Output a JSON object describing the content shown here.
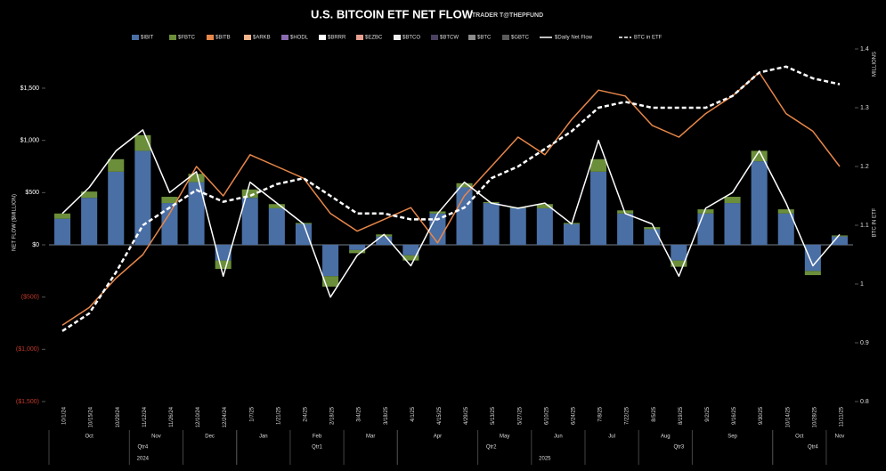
{
  "chart_data": {
    "type": "combo",
    "title": "U.S. BITCOIN ETF NET FLOW",
    "subtitle": "TRADER T@THEPFUND",
    "y_label": "NET FLOW ($MILLION)",
    "y2_label": "BTC IN ETF",
    "y2_unit": "MILLIONS",
    "categories": [
      "10/1/24",
      "10/15/24",
      "10/29/24",
      "11/12/24",
      "11/26/24",
      "12/10/24",
      "12/24/24",
      "1/7/25",
      "1/21/25",
      "2/4/25",
      "2/18/25",
      "3/4/25",
      "3/18/25",
      "4/1/25",
      "4/15/25",
      "4/29/25",
      "5/13/25",
      "5/27/25",
      "6/10/25",
      "6/24/25",
      "7/8/25",
      "7/22/25",
      "8/5/25",
      "8/19/25",
      "9/2/25",
      "9/16/25",
      "9/30/25",
      "10/14/25",
      "10/28/25",
      "11/11/25"
    ],
    "months": [
      "Oct",
      "Nov",
      "Dec",
      "Jan",
      "Feb",
      "Mar",
      "Apr",
      "May",
      "Jun",
      "Jul",
      "Aug",
      "Sep",
      "Oct",
      "Nov"
    ],
    "quarters": [
      "Qtr4",
      "Qtr1",
      "Qtr2",
      "Qtr3",
      "Qtr4"
    ],
    "years": [
      "2024",
      "2025"
    ],
    "ylim": [
      -1500,
      1875
    ],
    "yticks": [
      {
        "value": -1500,
        "label": "($1,500)"
      },
      {
        "value": -1000,
        "label": "($1,000)"
      },
      {
        "value": -500,
        "label": "($500)"
      },
      {
        "value": 0,
        "label": "$0"
      },
      {
        "value": 500,
        "label": "$500"
      },
      {
        "value": 1000,
        "label": "$1,000"
      },
      {
        "value": 1500,
        "label": "$1,500"
      }
    ],
    "y2lim": [
      0.8,
      1.4
    ],
    "y2ticks": [
      0.8,
      0.9,
      1.0,
      1.1,
      1.2,
      1.3,
      1.4
    ],
    "series": [
      {
        "name": "$IBIT",
        "color": "#4a6fa5",
        "kind": "bar",
        "values": [
          250,
          450,
          700,
          900,
          400,
          600,
          -150,
          450,
          350,
          200,
          -300,
          -50,
          80,
          -100,
          300,
          550,
          400,
          350,
          350,
          200,
          700,
          300,
          150,
          -150,
          300,
          400,
          800,
          300,
          -250,
          80
        ]
      },
      {
        "name": "$FBTC",
        "color": "#6b8e3a",
        "kind": "bar",
        "values": [
          50,
          60,
          120,
          150,
          60,
          80,
          -80,
          80,
          40,
          10,
          -100,
          -30,
          20,
          -50,
          20,
          40,
          10,
          10,
          40,
          10,
          120,
          30,
          20,
          -60,
          40,
          60,
          100,
          40,
          -40,
          10
        ]
      },
      {
        "name": "$BITB",
        "color": "#e8874a",
        "kind": "line",
        "axis": "y2",
        "values": [
          0.93,
          0.96,
          1.01,
          1.05,
          1.12,
          1.2,
          1.15,
          1.22,
          1.2,
          1.18,
          1.12,
          1.09,
          1.11,
          1.13,
          1.07,
          1.15,
          1.2,
          1.25,
          1.22,
          1.28,
          1.33,
          1.32,
          1.27,
          1.25,
          1.29,
          1.32,
          1.36,
          1.29,
          1.26,
          1.2
        ]
      },
      {
        "name": "$ARKB",
        "color": "#f2b48a",
        "kind": "bar"
      },
      {
        "name": "$HODL",
        "color": "#8a6bb0",
        "kind": "bar"
      },
      {
        "name": "$BRRR",
        "color": "#ffffff",
        "kind": "bar"
      },
      {
        "name": "$EZBC",
        "color": "#e8a090",
        "kind": "bar"
      },
      {
        "name": "$BTCO",
        "color": "#f0f0f0",
        "kind": "bar"
      },
      {
        "name": "$BTCW",
        "color": "#4a4060",
        "kind": "bar"
      },
      {
        "name": "$BTC",
        "color": "#8c8c8c",
        "kind": "bar"
      },
      {
        "name": "$GBTC",
        "color": "#5a5a5a",
        "kind": "bar"
      },
      {
        "name": "$Daily Net Flow",
        "color": "#ffffff",
        "kind": "line",
        "values": [
          300,
          550,
          900,
          1100,
          500,
          700,
          -300,
          600,
          400,
          200,
          -500,
          -100,
          100,
          -200,
          300,
          600,
          400,
          350,
          400,
          200,
          1000,
          300,
          200,
          -300,
          350,
          500,
          900,
          400,
          -200,
          100
        ]
      },
      {
        "name": "BTC in ETF",
        "color": "#ffffff",
        "kind": "line",
        "axis": "y2",
        "dash": true,
        "values": [
          0.92,
          0.95,
          1.02,
          1.1,
          1.13,
          1.16,
          1.14,
          1.15,
          1.17,
          1.18,
          1.15,
          1.12,
          1.12,
          1.11,
          1.11,
          1.13,
          1.18,
          1.2,
          1.23,
          1.26,
          1.3,
          1.31,
          1.3,
          1.3,
          1.3,
          1.32,
          1.36,
          1.37,
          1.35,
          1.34
        ]
      }
    ]
  }
}
